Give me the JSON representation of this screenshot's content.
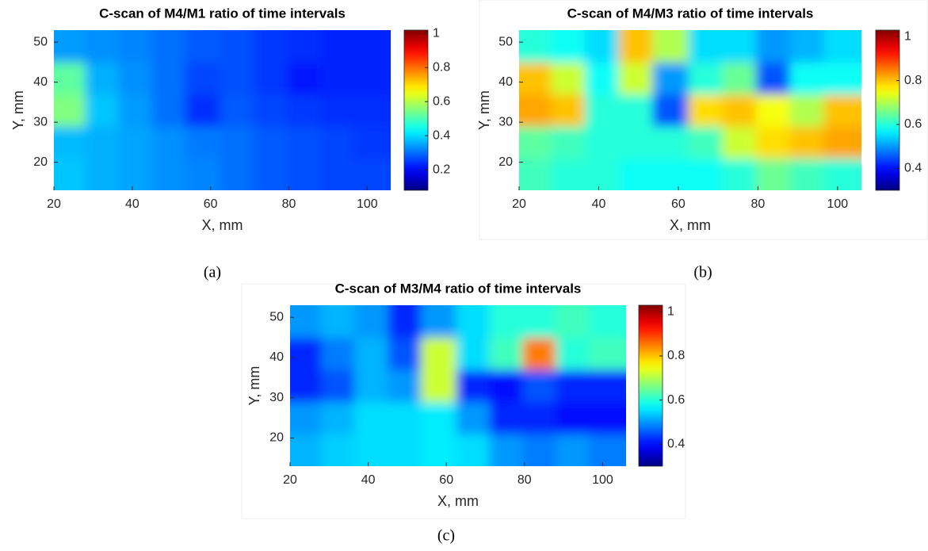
{
  "chart_data": [
    {
      "type": "heatmap",
      "title": "C-scan of M4/M1 ratio of time intervals",
      "x_label": "X, mm",
      "y_label": "Y, mm",
      "caption": "(a)",
      "colormap": "jet",
      "xlim": [
        20,
        106
      ],
      "ylim": [
        13,
        53
      ],
      "xticks": [
        20,
        40,
        60,
        80,
        100
      ],
      "yticks": [
        20,
        30,
        40,
        50
      ],
      "clim": [
        0.08,
        1.02
      ],
      "cticks": [
        0.2,
        0.4,
        0.6,
        0.8,
        1
      ],
      "x": [
        24,
        32,
        41,
        49,
        58,
        67,
        75,
        84,
        92,
        101
      ],
      "y": [
        17,
        25,
        33,
        41,
        49
      ],
      "z": [
        [
          0.38,
          0.36,
          0.35,
          0.33,
          0.32,
          0.3,
          0.28,
          0.27,
          0.26,
          0.26
        ],
        [
          0.37,
          0.36,
          0.35,
          0.33,
          0.31,
          0.3,
          0.28,
          0.27,
          0.26,
          0.25
        ],
        [
          0.55,
          0.38,
          0.34,
          0.3,
          0.24,
          0.28,
          0.26,
          0.25,
          0.24,
          0.24
        ],
        [
          0.52,
          0.36,
          0.33,
          0.3,
          0.26,
          0.27,
          0.25,
          0.22,
          0.23,
          0.23
        ],
        [
          0.34,
          0.33,
          0.32,
          0.3,
          0.28,
          0.27,
          0.25,
          0.24,
          0.23,
          0.23
        ]
      ]
    },
    {
      "type": "heatmap",
      "title": "C-scan of M4/M3 ratio of time intervals",
      "x_label": "X, mm",
      "y_label": "Y, mm",
      "caption": "(b)",
      "colormap": "jet",
      "xlim": [
        20,
        106
      ],
      "ylim": [
        13,
        53
      ],
      "xticks": [
        20,
        40,
        60,
        80,
        100
      ],
      "yticks": [
        20,
        30,
        40,
        50
      ],
      "clim": [
        0.3,
        1.03
      ],
      "cticks": [
        0.4,
        0.6,
        0.8,
        1
      ],
      "x": [
        24,
        32,
        41,
        49,
        58,
        67,
        75,
        84,
        92,
        101
      ],
      "y": [
        17,
        25,
        33,
        41,
        49
      ],
      "z": [
        [
          0.62,
          0.6,
          0.6,
          0.58,
          0.58,
          0.58,
          0.6,
          0.65,
          0.62,
          0.6
        ],
        [
          0.64,
          0.62,
          0.6,
          0.6,
          0.6,
          0.62,
          0.72,
          0.78,
          0.8,
          0.82
        ],
        [
          0.82,
          0.8,
          0.6,
          0.6,
          0.45,
          0.78,
          0.8,
          0.75,
          0.7,
          0.8
        ],
        [
          0.8,
          0.72,
          0.58,
          0.72,
          0.5,
          0.6,
          0.65,
          0.45,
          0.58,
          0.58
        ],
        [
          0.6,
          0.58,
          0.55,
          0.8,
          0.7,
          0.55,
          0.55,
          0.5,
          0.52,
          0.55
        ]
      ]
    },
    {
      "type": "heatmap",
      "title": "C-scan of M3/M4 ratio of time intervals",
      "x_label": "X, mm",
      "y_label": "Y, mm",
      "caption": "(c)",
      "colormap": "jet",
      "xlim": [
        20,
        106
      ],
      "ylim": [
        13,
        53
      ],
      "xticks": [
        20,
        40,
        60,
        80,
        100
      ],
      "yticks": [
        20,
        30,
        40,
        50
      ],
      "clim": [
        0.3,
        1.03
      ],
      "cticks": [
        0.4,
        0.6,
        0.8,
        1
      ],
      "x": [
        24,
        32,
        41,
        49,
        58,
        67,
        75,
        84,
        92,
        101
      ],
      "y": [
        17,
        25,
        33,
        41,
        49
      ],
      "z": [
        [
          0.52,
          0.54,
          0.55,
          0.55,
          0.56,
          0.55,
          0.5,
          0.48,
          0.5,
          0.48
        ],
        [
          0.5,
          0.52,
          0.55,
          0.55,
          0.56,
          0.5,
          0.42,
          0.42,
          0.4,
          0.4
        ],
        [
          0.42,
          0.45,
          0.52,
          0.5,
          0.72,
          0.42,
          0.4,
          0.45,
          0.42,
          0.42
        ],
        [
          0.42,
          0.48,
          0.52,
          0.45,
          0.72,
          0.55,
          0.62,
          0.85,
          0.6,
          0.62
        ],
        [
          0.5,
          0.52,
          0.5,
          0.42,
          0.5,
          0.55,
          0.6,
          0.6,
          0.62,
          0.6
        ]
      ]
    }
  ]
}
